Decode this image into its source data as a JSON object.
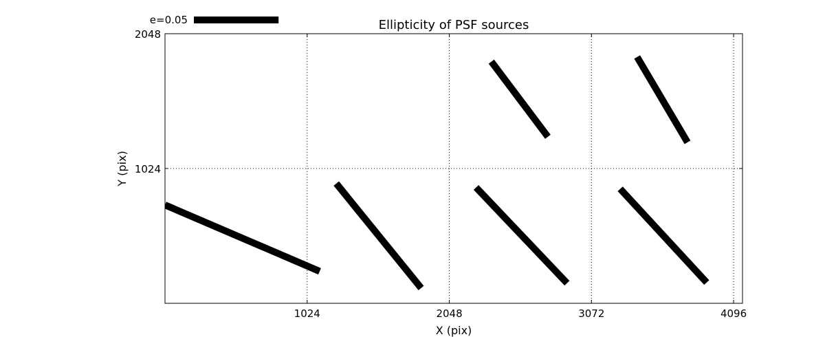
{
  "chart_data": {
    "type": "quiver",
    "title": "Ellipticity of PSF sources",
    "xlabel": "X (pix)",
    "ylabel": "Y (pix)",
    "xlim": [
      0,
      4160
    ],
    "ylim": [
      0,
      2048
    ],
    "xticks": [
      1024,
      2048,
      3072,
      4096
    ],
    "yticks": [
      1024,
      2048
    ],
    "grid": true,
    "grid_style": "dotted",
    "line_color": "#000000",
    "scale_key": {
      "label": "e=0.05",
      "value": 0.05,
      "length_pix": 610,
      "placement": "top-left, above plot"
    },
    "segments": [
      {
        "x1": 0,
        "y1": 747,
        "x2": 1114,
        "y2": 243
      },
      {
        "x1": 1234,
        "y1": 910,
        "x2": 1845,
        "y2": 116
      },
      {
        "x1": 2241,
        "y1": 880,
        "x2": 2896,
        "y2": 153
      },
      {
        "x1": 3279,
        "y1": 869,
        "x2": 3902,
        "y2": 158
      },
      {
        "x1": 2351,
        "y1": 1836,
        "x2": 2758,
        "y2": 1265
      },
      {
        "x1": 3401,
        "y1": 1871,
        "x2": 3764,
        "y2": 1223
      }
    ]
  }
}
